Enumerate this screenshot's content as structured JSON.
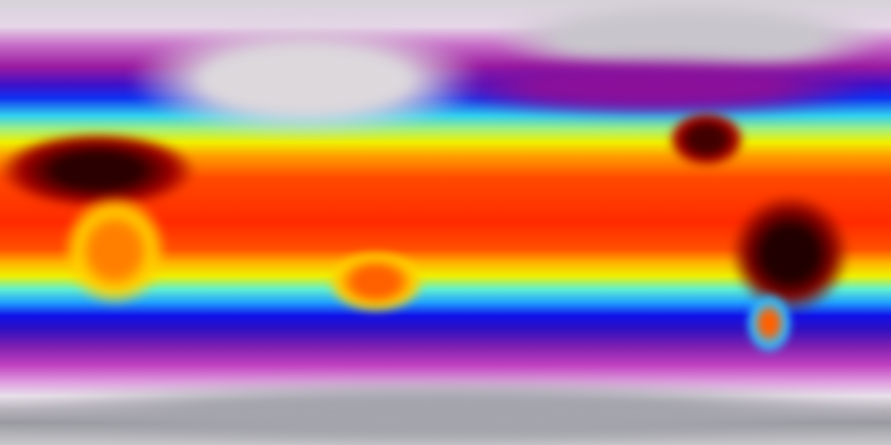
{
  "map": {
    "projection": "equirectangular",
    "variable": "temperature",
    "colormap": [
      "#d6d2d8",
      "#9a1aa0",
      "#1030f0",
      "#30d0f0",
      "#f0f000",
      "#ff4a00",
      "#300000"
    ]
  }
}
